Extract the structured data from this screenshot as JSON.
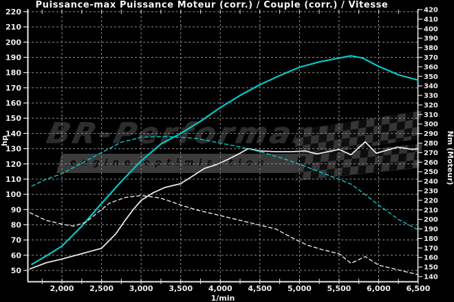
{
  "title": "Puissance-max Puissance Moteur (corr.) / Couple (corr.) / Vitesse",
  "watermark": {
    "brand": "BR-Performance",
    "tagline": "engine optimisation"
  },
  "colors": {
    "background": "#000000",
    "text": "#f2f2f2",
    "grid": "#8f8f8f",
    "axis": "#e8e8e8",
    "run2_accent": "#00cccc",
    "run1_accent": "#e8e8e8",
    "watermark_text": "#2d2d2d",
    "watermark_banner": "#3b3b3b"
  },
  "chart_data": {
    "type": "line",
    "title": "Puissance-max Puissance Moteur (corr.) / Couple (corr.) / Vitesse",
    "x_axis": {
      "label": "1/min",
      "min": 1565,
      "max": 6500,
      "ticks": [
        2000,
        2500,
        3000,
        3500,
        4000,
        4500,
        5000,
        5500,
        6000,
        6500
      ],
      "tick_labels": [
        "2,000",
        "2,500",
        "3,000",
        "3,500",
        "4,000",
        "4,500",
        "5,000",
        "5,500",
        "6,000",
        "6,500"
      ],
      "minor_tick_step": 250
    },
    "y_axis_left": {
      "label": "hp",
      "min": 50,
      "max": 220,
      "tick_step": 10
    },
    "y_axis_right": {
      "label": "Nm (Moteur)",
      "min": 140,
      "max": 420,
      "tick_step": 10
    },
    "grid": {
      "horizontal_step_hp": 10,
      "vertical_step_rpm": 500,
      "style": "dashed"
    },
    "series": [
      {
        "name": "power-run2",
        "axis": "left",
        "color_key": "run2_accent",
        "style": "solid",
        "points": [
          [
            1620,
            54
          ],
          [
            1800,
            59.5
          ],
          [
            2000,
            66
          ],
          [
            2250,
            79
          ],
          [
            2500,
            94
          ],
          [
            2750,
            108.5
          ],
          [
            3000,
            122
          ],
          [
            3250,
            133
          ],
          [
            3500,
            140
          ],
          [
            3750,
            148
          ],
          [
            4000,
            157
          ],
          [
            4250,
            165
          ],
          [
            4500,
            172
          ],
          [
            4750,
            178
          ],
          [
            5000,
            183.5
          ],
          [
            5250,
            187
          ],
          [
            5450,
            189
          ],
          [
            5650,
            191
          ],
          [
            5800,
            189.5
          ],
          [
            6000,
            184
          ],
          [
            6250,
            178.5
          ],
          [
            6500,
            175
          ]
        ]
      },
      {
        "name": "power-run1",
        "axis": "left",
        "color_key": "run1_accent",
        "style": "solid",
        "points": [
          [
            1595,
            51
          ],
          [
            1800,
            55
          ],
          [
            2000,
            57.5
          ],
          [
            2250,
            61
          ],
          [
            2500,
            64.5
          ],
          [
            2680,
            74
          ],
          [
            2800,
            83
          ],
          [
            2900,
            90
          ],
          [
            3000,
            96
          ],
          [
            3150,
            101
          ],
          [
            3300,
            104.5
          ],
          [
            3500,
            107
          ],
          [
            3650,
            112
          ],
          [
            3800,
            117
          ],
          [
            3950,
            119.5
          ],
          [
            4100,
            123
          ],
          [
            4250,
            127
          ],
          [
            4350,
            130
          ],
          [
            4500,
            128.5
          ],
          [
            4700,
            128
          ],
          [
            4900,
            128
          ],
          [
            5070,
            128.5
          ],
          [
            5220,
            126.5
          ],
          [
            5500,
            129.5
          ],
          [
            5650,
            126
          ],
          [
            5830,
            134.5
          ],
          [
            5970,
            127
          ],
          [
            6240,
            131
          ],
          [
            6430,
            129.5
          ],
          [
            6500,
            130
          ]
        ]
      },
      {
        "name": "torque-run2",
        "axis": "right",
        "color_key": "run2_accent",
        "style": "dashed",
        "points": [
          [
            1620,
            235
          ],
          [
            1800,
            242
          ],
          [
            2000,
            248
          ],
          [
            2250,
            259
          ],
          [
            2500,
            270
          ],
          [
            2750,
            281
          ],
          [
            3000,
            286
          ],
          [
            3300,
            287
          ],
          [
            3700,
            285
          ],
          [
            4000,
            280
          ],
          [
            4250,
            276
          ],
          [
            4500,
            271
          ],
          [
            4750,
            265
          ],
          [
            5000,
            258
          ],
          [
            5250,
            250
          ],
          [
            5500,
            242
          ],
          [
            5650,
            237
          ],
          [
            5800,
            228
          ],
          [
            6000,
            215
          ],
          [
            6250,
            200
          ],
          [
            6500,
            189
          ]
        ]
      },
      {
        "name": "torque-run1",
        "axis": "right",
        "color_key": "run1_accent",
        "style": "dashed",
        "points": [
          [
            1595,
            207
          ],
          [
            1800,
            199
          ],
          [
            2000,
            195
          ],
          [
            2150,
            193
          ],
          [
            2300,
            197
          ],
          [
            2450,
            207
          ],
          [
            2600,
            217
          ],
          [
            2800,
            223
          ],
          [
            3000,
            225
          ],
          [
            3200,
            223
          ],
          [
            3300,
            221
          ],
          [
            3500,
            215
          ],
          [
            3700,
            210
          ],
          [
            3900,
            206
          ],
          [
            4100,
            202
          ],
          [
            4300,
            198
          ],
          [
            4500,
            194
          ],
          [
            4700,
            190
          ],
          [
            4900,
            181
          ],
          [
            5100,
            173
          ],
          [
            5300,
            168
          ],
          [
            5500,
            164
          ],
          [
            5650,
            154
          ],
          [
            5830,
            161
          ],
          [
            6000,
            152
          ],
          [
            6200,
            148
          ],
          [
            6350,
            145
          ],
          [
            6500,
            142
          ]
        ]
      }
    ]
  }
}
